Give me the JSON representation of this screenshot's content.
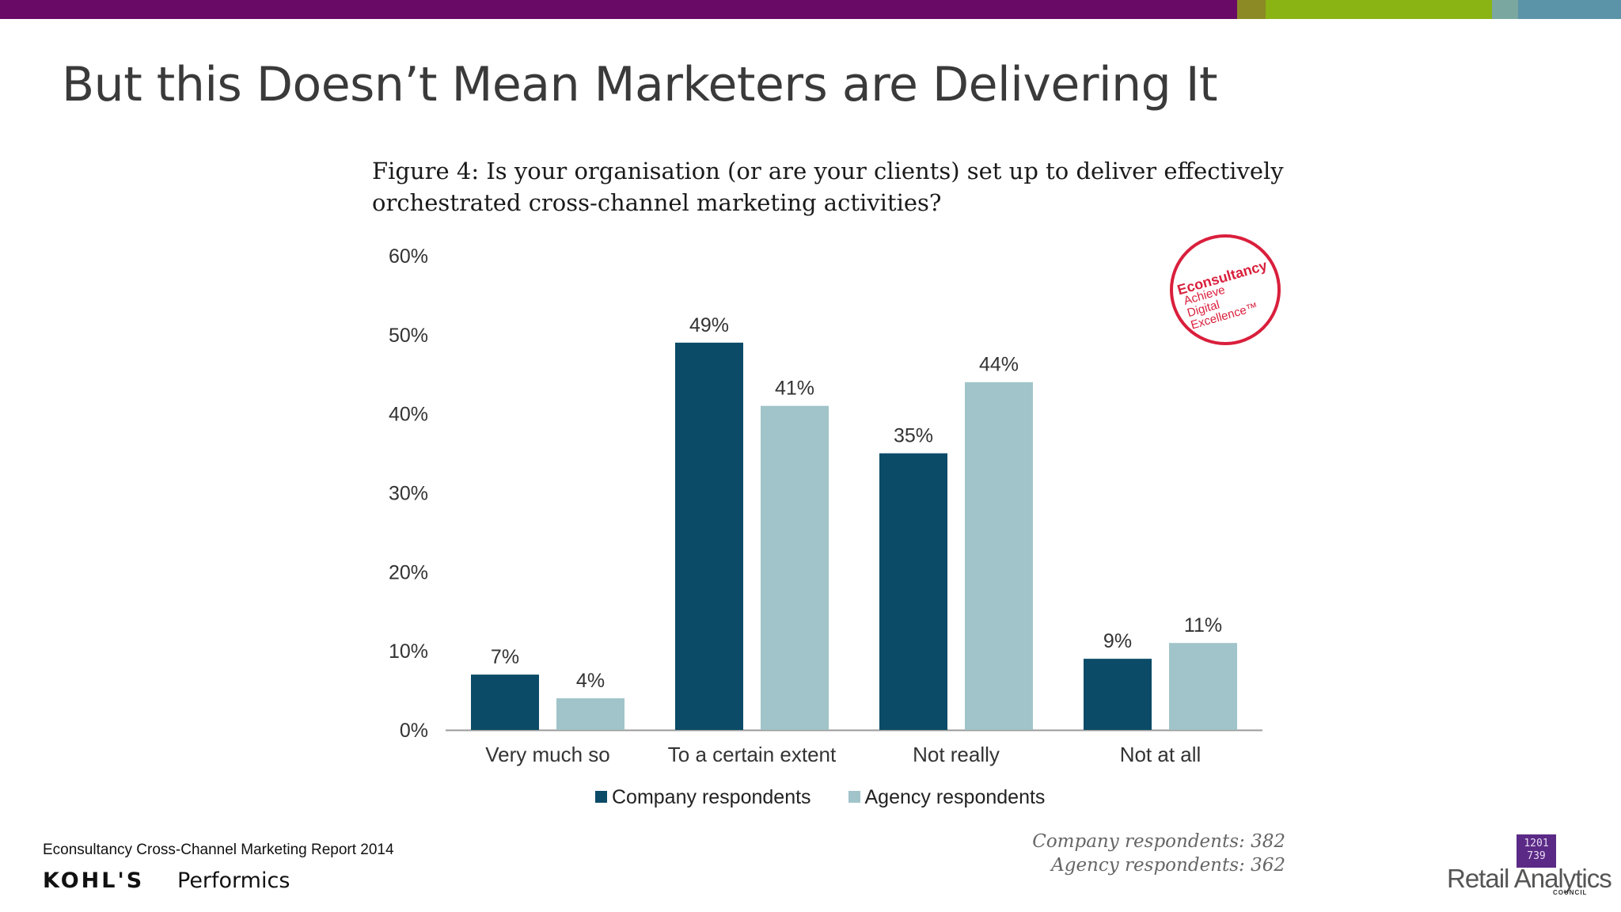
{
  "slide": {
    "title": "But this Doesn’t Mean Marketers are Delivering It",
    "source": "Econsultancy Cross-Channel Marketing Report 2014"
  },
  "colors": {
    "topbar": [
      "#6a0a67",
      "#8c8a25",
      "#8ab414",
      "#7aa8a0",
      "#5b93a8"
    ],
    "company": "#0b4b67",
    "agency": "#a0c4c9",
    "badge": "#d91f3c"
  },
  "badge": {
    "line1": "Econsultancy",
    "line2": "Achieve",
    "line3": "Digital",
    "line4": "Excellence™"
  },
  "chart_data": {
    "type": "bar",
    "title_line1": "Figure 4: Is your organisation (or are your clients) set up to deliver effectively",
    "title_line2": "orchestrated cross-channel marketing activities?",
    "categories": [
      "Very much so",
      "To a certain extent",
      "Not really",
      "Not at all"
    ],
    "series": [
      {
        "name": "Company respondents",
        "values": [
          7,
          49,
          35,
          9
        ],
        "labels": [
          "7%",
          "49%",
          "35%",
          "9%"
        ]
      },
      {
        "name": "Agency respondents",
        "values": [
          4,
          41,
          44,
          11
        ],
        "labels": [
          "4%",
          "41%",
          "44%",
          "11%"
        ]
      }
    ],
    "ylim": [
      0,
      60
    ],
    "yticks": [
      0,
      10,
      20,
      30,
      40,
      50,
      60
    ],
    "ytick_labels": [
      "0%",
      "10%",
      "20%",
      "30%",
      "40%",
      "50%",
      "60%"
    ],
    "grid": false,
    "legend": "bottom"
  },
  "respondents": {
    "company": "Company respondents: 382",
    "agency": "Agency respondents: 362"
  },
  "logos": {
    "kohls": "KOHL'S",
    "performics": "Performics",
    "rac_digits": "1201 739",
    "rac_name": "Retail Analytics",
    "rac_council": "COUNCIL"
  }
}
